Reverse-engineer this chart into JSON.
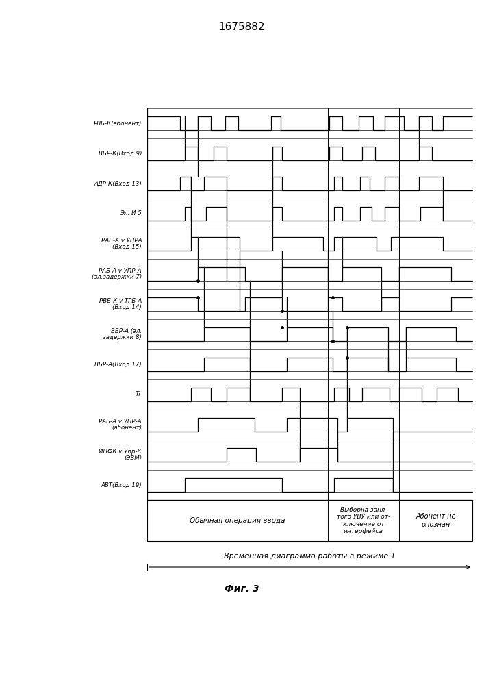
{
  "title": "1675882",
  "fig_label": "Фиг. 3",
  "bottom_label": "Временная диаграмма работы в режиме 1",
  "section_labels": [
    "Обычная операция ввода",
    "Выборка заня-\nтого УВУ или от-\nключение от\nинтерфейса",
    "Абонент не\nопознан"
  ],
  "signals": [
    "РВБ-К(абонент)",
    "ВБР-К(Вход 9)",
    "АДР-К(Вход 13)",
    "Эл. И 5",
    "РАБ-А v УПРА\n(Вход 15)",
    "РАБ-А v УПР-А\n(эл.задержки 7)",
    "РВБ-К v ТРБ-А\n(Вход 14)",
    "ВБР-А (эл.\nзадержки 8)",
    "ВБР-А(Вход 17)",
    "Тг",
    "РАБ-А v УПР-А\n(абонент)",
    "ИНФК v Упр-К\n(ЭВМ)",
    "АВТ(Вход 19)"
  ],
  "background_color": "#ffffff",
  "line_color": "#000000",
  "text_color": "#000000"
}
